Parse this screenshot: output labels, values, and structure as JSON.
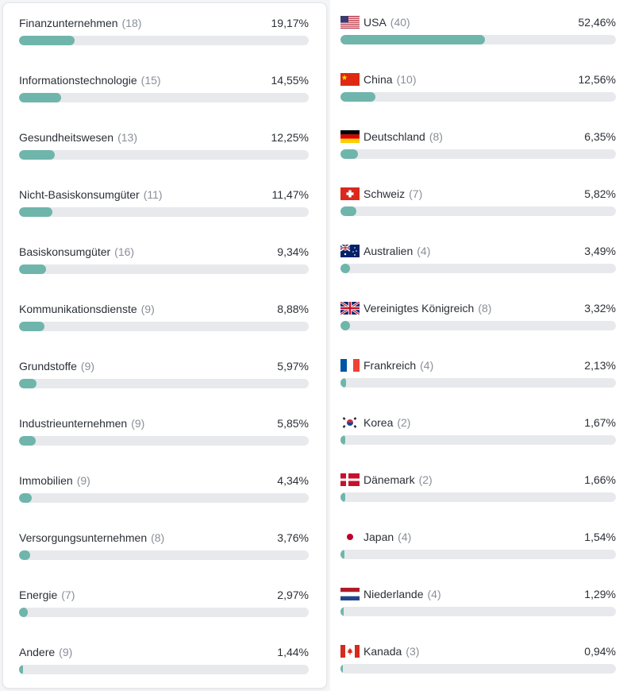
{
  "colors": {
    "bar_fill": "#6fb5ab",
    "bar_track": "#e8e9ec",
    "count_text": "#8a8f98"
  },
  "sectors": [
    {
      "name": "Finanzunternehmen",
      "count": "(18)",
      "pct_label": "19,17%",
      "value": 19.17
    },
    {
      "name": "Informationstechnologie",
      "count": "(15)",
      "pct_label": "14,55%",
      "value": 14.55
    },
    {
      "name": "Gesundheitswesen",
      "count": "(13)",
      "pct_label": "12,25%",
      "value": 12.25
    },
    {
      "name": "Nicht-Basiskonsumgüter",
      "count": "(11)",
      "pct_label": "11,47%",
      "value": 11.47
    },
    {
      "name": "Basiskonsumgüter",
      "count": "(16)",
      "pct_label": "9,34%",
      "value": 9.34
    },
    {
      "name": "Kommunikationsdienste",
      "count": "(9)",
      "pct_label": "8,88%",
      "value": 8.88
    },
    {
      "name": "Grundstoffe",
      "count": "(9)",
      "pct_label": "5,97%",
      "value": 5.97
    },
    {
      "name": "Industrieunternehmen",
      "count": "(9)",
      "pct_label": "5,85%",
      "value": 5.85
    },
    {
      "name": "Immobilien",
      "count": "(9)",
      "pct_label": "4,34%",
      "value": 4.34
    },
    {
      "name": "Versorgungsunternehmen",
      "count": "(8)",
      "pct_label": "3,76%",
      "value": 3.76
    },
    {
      "name": "Energie",
      "count": "(7)",
      "pct_label": "2,97%",
      "value": 2.97
    },
    {
      "name": "Andere",
      "count": "(9)",
      "pct_label": "1,44%",
      "value": 1.44
    }
  ],
  "countries": [
    {
      "name": "USA",
      "count": "(40)",
      "pct_label": "52,46%",
      "value": 52.46,
      "flag": "us-flag-icon"
    },
    {
      "name": "China",
      "count": "(10)",
      "pct_label": "12,56%",
      "value": 12.56,
      "flag": "china-flag-icon"
    },
    {
      "name": "Deutschland",
      "count": "(8)",
      "pct_label": "6,35%",
      "value": 6.35,
      "flag": "germany-flag-icon"
    },
    {
      "name": "Schweiz",
      "count": "(7)",
      "pct_label": "5,82%",
      "value": 5.82,
      "flag": "switzerland-flag-icon"
    },
    {
      "name": "Australien",
      "count": "(4)",
      "pct_label": "3,49%",
      "value": 3.49,
      "flag": "australia-flag-icon"
    },
    {
      "name": "Vereinigtes Königreich",
      "count": "(8)",
      "pct_label": "3,32%",
      "value": 3.32,
      "flag": "uk-flag-icon"
    },
    {
      "name": "Frankreich",
      "count": "(4)",
      "pct_label": "2,13%",
      "value": 2.13,
      "flag": "france-flag-icon"
    },
    {
      "name": "Korea",
      "count": "(2)",
      "pct_label": "1,67%",
      "value": 1.67,
      "flag": "korea-flag-icon"
    },
    {
      "name": "Dänemark",
      "count": "(2)",
      "pct_label": "1,66%",
      "value": 1.66,
      "flag": "denmark-flag-icon"
    },
    {
      "name": "Japan",
      "count": "(4)",
      "pct_label": "1,54%",
      "value": 1.54,
      "flag": "japan-flag-icon"
    },
    {
      "name": "Niederlande",
      "count": "(4)",
      "pct_label": "1,29%",
      "value": 1.29,
      "flag": "netherlands-flag-icon"
    },
    {
      "name": "Kanada",
      "count": "(3)",
      "pct_label": "0,94%",
      "value": 0.94,
      "flag": "canada-flag-icon"
    }
  ]
}
